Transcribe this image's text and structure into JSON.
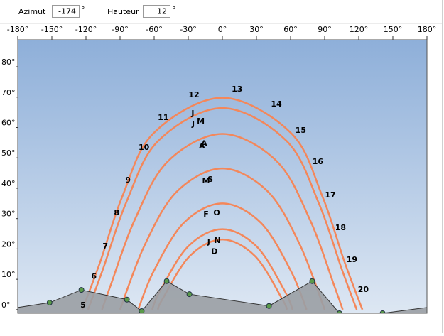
{
  "toolbar": {
    "azimuth_label": "Azimut",
    "azimuth_value": "-174",
    "azimuth_unit": "°",
    "altitude_label": "Hauteur",
    "altitude_value": "12",
    "altitude_unit": "°"
  },
  "chart_data": {
    "type": "sunpath",
    "xlim": [
      -180,
      180
    ],
    "xticks": [
      {
        "value": -180,
        "label": "-180°"
      },
      {
        "value": -150,
        "label": "-150°"
      },
      {
        "value": -120,
        "label": "-120°"
      },
      {
        "value": -90,
        "label": "-90°"
      },
      {
        "value": -60,
        "label": "-60°"
      },
      {
        "value": -30,
        "label": "-30°"
      },
      {
        "value": 0,
        "label": "0°"
      },
      {
        "value": 30,
        "label": "30°"
      },
      {
        "value": 60,
        "label": "60°"
      },
      {
        "value": 90,
        "label": "90°"
      },
      {
        "value": 120,
        "label": "120°"
      },
      {
        "value": 150,
        "label": "150°"
      },
      {
        "value": 180,
        "label": "180°"
      }
    ],
    "ylim": [
      -1.2,
      88.9
    ],
    "yticks": [
      {
        "value": 0,
        "label": "0°"
      },
      {
        "value": 10,
        "label": "10°"
      },
      {
        "value": 20,
        "label": "20°"
      },
      {
        "value": 30,
        "label": "30°"
      },
      {
        "value": 40,
        "label": "40°"
      },
      {
        "value": 50,
        "label": "50°"
      },
      {
        "value": 60,
        "label": "60°"
      },
      {
        "value": 70,
        "label": "70°"
      },
      {
        "value": 80,
        "label": "80°"
      }
    ],
    "series": [
      {
        "color": "#f4875a",
        "x": [
          -123.2,
          -107.4,
          -88,
          -60.6,
          0,
          60.6,
          88,
          107.4,
          123.2
        ],
        "values": [
          0,
          15.8,
          37.3,
          58.1,
          69.8,
          58.1,
          37.3,
          15.8,
          0
        ]
      },
      {
        "color": "#f4875a",
        "x": [
          -118.2,
          -104.8,
          -84.7,
          -56.4,
          0,
          56.4,
          84.7,
          104.8,
          118.2
        ],
        "values": [
          0,
          13.6,
          35.2,
          55.6,
          66.4,
          55.6,
          35.2,
          13.6,
          0
        ]
      },
      {
        "color": "#f4875a",
        "x": [
          -105.9,
          -98.4,
          -77.2,
          -48.1,
          0,
          48.1,
          77.2,
          98.4,
          105.9
        ],
        "values": [
          0,
          7.9,
          29.5,
          48.8,
          57.9,
          48.8,
          29.5,
          7.9,
          0
        ]
      },
      {
        "color": "#f4875a",
        "x": [
          -90,
          -68.3,
          -40,
          0,
          40,
          68.3,
          90
        ],
        "values": [
          0,
          21.3,
          38.9,
          46.5,
          38.9,
          21.3,
          0
        ]
      },
      {
        "color": "#f4875a",
        "x": [
          -74.1,
          -60.5,
          -33.9,
          0,
          33.9,
          60.5,
          74.1
        ],
        "values": [
          0,
          12.6,
          28.6,
          35,
          28.6,
          12.6,
          0
        ]
      },
      {
        "color": "#f4875a",
        "x": [
          -61.8,
          -54.9,
          -30.2,
          0,
          30.2,
          54.9,
          61.8
        ],
        "values": [
          0,
          6.1,
          20.8,
          26.5,
          20.8,
          6.1,
          0
        ]
      },
      {
        "color": "#f4875a",
        "x": [
          -56.8,
          -52.8,
          -28.8,
          0,
          28.8,
          52.8,
          56.8
        ],
        "values": [
          0,
          3.4,
          17.6,
          23.1,
          17.6,
          3.4,
          0
        ]
      }
    ],
    "horizon": {
      "color": "#9a9fa4",
      "point_color": "#5a9a4a",
      "x": [
        -180,
        -152,
        -124,
        -84,
        -71,
        -49,
        -29,
        41,
        79,
        103,
        141,
        180
      ],
      "values": [
        0.7,
        2.3,
        6.5,
        3.3,
        -0.5,
        9.4,
        5.1,
        1.2,
        9.4,
        -1.2,
        -1.2,
        0.7
      ]
    },
    "hour_labels": [
      {
        "text": "5",
        "x": -122.5,
        "y": 1.4
      },
      {
        "text": "6",
        "x": -113,
        "y": 10.8
      },
      {
        "text": "7",
        "x": -103,
        "y": 20.8
      },
      {
        "text": "8",
        "x": -93,
        "y": 31.8
      },
      {
        "text": "9",
        "x": -83,
        "y": 42.6
      },
      {
        "text": "10",
        "x": -69,
        "y": 53.3
      },
      {
        "text": "11",
        "x": -52,
        "y": 63.2
      },
      {
        "text": "12",
        "x": -25,
        "y": 70.6
      },
      {
        "text": "13",
        "x": 13,
        "y": 72.5
      },
      {
        "text": "14",
        "x": 47.5,
        "y": 67.6
      },
      {
        "text": "15",
        "x": 69,
        "y": 59
      },
      {
        "text": "16",
        "x": 84,
        "y": 48.7
      },
      {
        "text": "17",
        "x": 95,
        "y": 37.7
      },
      {
        "text": "18",
        "x": 104,
        "y": 26.9
      },
      {
        "text": "19",
        "x": 114,
        "y": 16.4
      },
      {
        "text": "20",
        "x": 124,
        "y": 6.5
      }
    ],
    "month_labels": [
      {
        "text": "J",
        "x": -26,
        "y": 64.6
      },
      {
        "text": "J",
        "x": -25.6,
        "y": 61
      },
      {
        "text": "M",
        "x": -19,
        "y": 62
      },
      {
        "text": "A",
        "x": -16,
        "y": 54.6
      },
      {
        "text": "A",
        "x": -18,
        "y": 53.8
      },
      {
        "text": "M",
        "x": -14.4,
        "y": 42.3
      },
      {
        "text": "S",
        "x": -10.6,
        "y": 42.8
      },
      {
        "text": "F",
        "x": -14.4,
        "y": 31.3
      },
      {
        "text": "O",
        "x": -5,
        "y": 31.8
      },
      {
        "text": "J",
        "x": -12,
        "y": 22.2
      },
      {
        "text": "N",
        "x": -4.4,
        "y": 22.7
      },
      {
        "text": "D",
        "x": -7,
        "y": 19
      }
    ]
  }
}
